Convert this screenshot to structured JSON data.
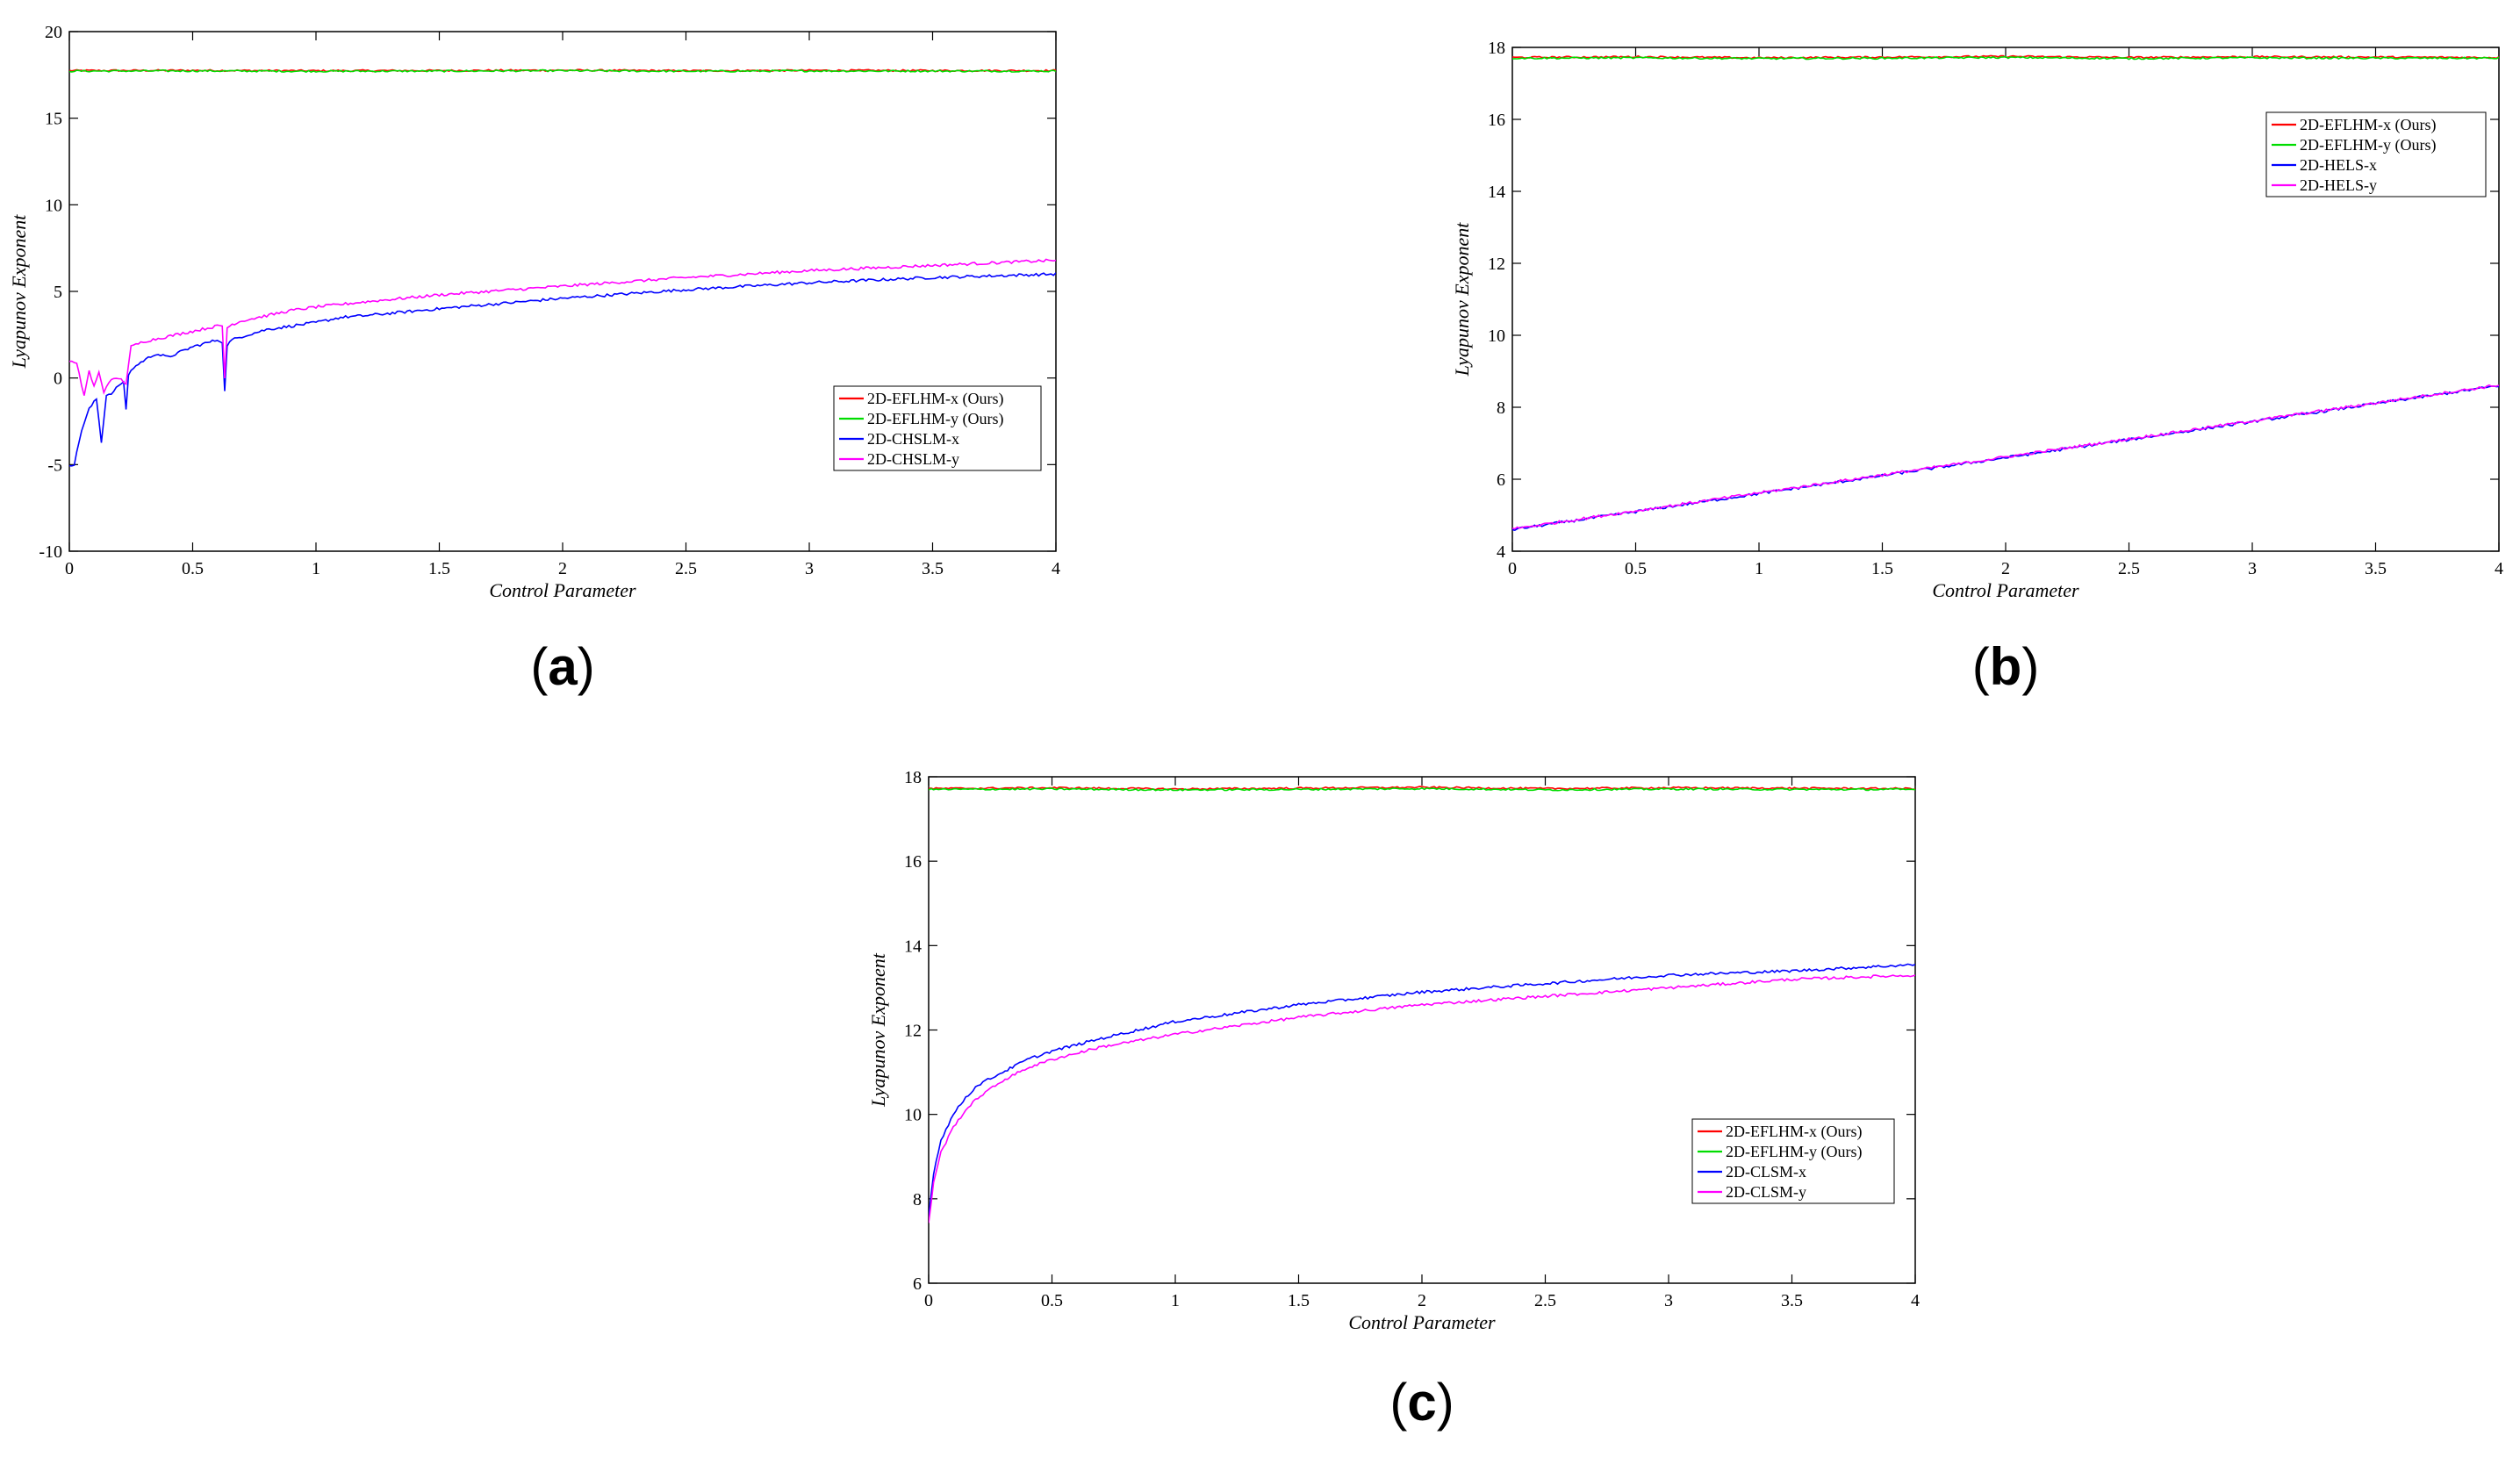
{
  "colors": {
    "ours_x": "#ff0000",
    "ours_y": "#00dd00",
    "comp_x": "#0000ff",
    "comp_y": "#ff00ff"
  },
  "chart_data": [
    {
      "panel": "(a)",
      "panel_letter": "a",
      "type": "line",
      "xlabel": "Control Parameter",
      "ylabel": "Lyapunov Exponent",
      "xlim": [
        0,
        4
      ],
      "ylim": [
        -10,
        20
      ],
      "xticks": [
        0,
        0.5,
        1,
        1.5,
        2,
        2.5,
        3,
        3.5,
        4
      ],
      "xtick_labels": [
        "0",
        "0.5",
        "1",
        "1.5",
        "2",
        "2.5",
        "3",
        "3.5",
        "4"
      ],
      "yticks": [
        -10,
        -5,
        0,
        5,
        10,
        15,
        20
      ],
      "ytick_labels": [
        "-10",
        "-5",
        "0",
        "5",
        "10",
        "15",
        "20"
      ],
      "legend_position": "lower-right",
      "series": [
        {
          "name": "2D-EFLHM-x (Ours)",
          "color_key": "ours_x",
          "x": [
            0,
            0.5,
            1,
            1.5,
            2,
            2.5,
            3,
            3.5,
            4
          ],
          "y": [
            17.75,
            17.76,
            17.74,
            17.75,
            17.77,
            17.74,
            17.76,
            17.75,
            17.75
          ]
        },
        {
          "name": "2D-EFLHM-y (Ours)",
          "color_key": "ours_y",
          "x": [
            0,
            0.5,
            1,
            1.5,
            2,
            2.5,
            3,
            3.5,
            4
          ],
          "y": [
            17.72,
            17.73,
            17.71,
            17.72,
            17.74,
            17.71,
            17.73,
            17.72,
            17.72
          ]
        },
        {
          "name": "2D-CHSLM-x",
          "color_key": "comp_x",
          "x": [
            0.02,
            0.05,
            0.08,
            0.11,
            0.13,
            0.15,
            0.18,
            0.2,
            0.22,
            0.23,
            0.24,
            0.26,
            0.3,
            0.35,
            0.4,
            0.5,
            0.6,
            0.62,
            0.63,
            0.64,
            0.66,
            0.7,
            0.8,
            0.9,
            1.0,
            1.1,
            1.2,
            1.5,
            2.0,
            2.5,
            3.0,
            3.5,
            4.0
          ],
          "y": [
            -5.0,
            -3.0,
            -1.8,
            -1.2,
            -3.7,
            -1.0,
            -0.8,
            -0.4,
            -0.3,
            -1.8,
            0.2,
            0.6,
            1.0,
            1.4,
            1.2,
            1.8,
            2.2,
            2.1,
            -0.8,
            1.9,
            2.2,
            2.4,
            2.8,
            3.0,
            3.2,
            3.5,
            3.6,
            4.0,
            4.6,
            5.1,
            5.5,
            5.8,
            6.0
          ]
        },
        {
          "name": "2D-CHSLM-y",
          "color_key": "comp_y",
          "x": [
            0.0,
            0.03,
            0.06,
            0.08,
            0.1,
            0.12,
            0.14,
            0.16,
            0.2,
            0.23,
            0.25,
            0.3,
            0.4,
            0.5,
            0.6,
            0.62,
            0.63,
            0.64,
            0.66,
            0.7,
            0.8,
            0.9,
            1.0,
            1.2,
            1.5,
            2.0,
            2.5,
            3.0,
            3.5,
            4.0
          ],
          "y": [
            1.0,
            0.8,
            -1.0,
            0.4,
            -0.5,
            0.3,
            -0.8,
            -0.2,
            0.0,
            -0.3,
            1.8,
            2.1,
            2.4,
            2.7,
            3.0,
            3.0,
            0.0,
            2.9,
            3.1,
            3.3,
            3.6,
            3.9,
            4.1,
            4.4,
            4.8,
            5.3,
            5.8,
            6.2,
            6.5,
            6.8
          ]
        }
      ]
    },
    {
      "panel": "(b)",
      "panel_letter": "b",
      "type": "line",
      "xlabel": "Control Parameter",
      "ylabel": "Lyapunov Exponent",
      "xlim": [
        0,
        4
      ],
      "ylim": [
        4,
        18
      ],
      "xticks": [
        0,
        0.5,
        1,
        1.5,
        2,
        2.5,
        3,
        3.5,
        4
      ],
      "xtick_labels": [
        "0",
        "0.5",
        "1",
        "1.5",
        "2",
        "2.5",
        "3",
        "3.5",
        "4"
      ],
      "yticks": [
        4,
        6,
        8,
        10,
        12,
        14,
        16,
        18
      ],
      "ytick_labels": [
        "4",
        "6",
        "8",
        "10",
        "12",
        "14",
        "16",
        "18"
      ],
      "legend_position": "upper-right",
      "series": [
        {
          "name": "2D-EFLHM-x (Ours)",
          "color_key": "ours_x",
          "x": [
            0,
            0.5,
            1,
            1.5,
            2,
            2.5,
            3,
            3.5,
            4
          ],
          "y": [
            17.72,
            17.74,
            17.71,
            17.73,
            17.75,
            17.72,
            17.74,
            17.73,
            17.72
          ]
        },
        {
          "name": "2D-EFLHM-y (Ours)",
          "color_key": "ours_y",
          "x": [
            0,
            0.5,
            1,
            1.5,
            2,
            2.5,
            3,
            3.5,
            4
          ],
          "y": [
            17.7,
            17.71,
            17.69,
            17.7,
            17.72,
            17.69,
            17.71,
            17.7,
            17.7
          ]
        },
        {
          "name": "2D-HELS-x",
          "color_key": "comp_x",
          "x": [
            0,
            0.5,
            1,
            1.5,
            2,
            2.5,
            3,
            3.5,
            4
          ],
          "y": [
            4.6,
            5.1,
            5.6,
            6.1,
            6.6,
            7.1,
            7.6,
            8.1,
            8.6
          ]
        },
        {
          "name": "2D-HELS-y",
          "color_key": "comp_y",
          "x": [
            0,
            0.5,
            1,
            1.5,
            2,
            2.5,
            3,
            3.5,
            4
          ],
          "y": [
            4.62,
            5.12,
            5.62,
            6.12,
            6.62,
            7.12,
            7.62,
            8.12,
            8.62
          ]
        }
      ]
    },
    {
      "panel": "(c)",
      "panel_letter": "c",
      "type": "line",
      "xlabel": "Control Parameter",
      "ylabel": "Lyapunov Exponent",
      "xlim": [
        0,
        4
      ],
      "ylim": [
        6,
        18
      ],
      "xticks": [
        0,
        0.5,
        1,
        1.5,
        2,
        2.5,
        3,
        3.5,
        4
      ],
      "xtick_labels": [
        "0",
        "0.5",
        "1",
        "1.5",
        "2",
        "2.5",
        "3",
        "3.5",
        "4"
      ],
      "yticks": [
        6,
        8,
        10,
        12,
        14,
        16,
        18
      ],
      "ytick_labels": [
        "6",
        "8",
        "10",
        "12",
        "14",
        "16",
        "18"
      ],
      "legend_position": "lower-right",
      "series": [
        {
          "name": "2D-EFLHM-x (Ours)",
          "color_key": "ours_x",
          "x": [
            0,
            0.5,
            1,
            1.5,
            2,
            2.5,
            3,
            3.5,
            4
          ],
          "y": [
            17.72,
            17.74,
            17.71,
            17.73,
            17.75,
            17.72,
            17.74,
            17.73,
            17.72
          ]
        },
        {
          "name": "2D-EFLHM-y (Ours)",
          "color_key": "ours_y",
          "x": [
            0,
            0.5,
            1,
            1.5,
            2,
            2.5,
            3,
            3.5,
            4
          ],
          "y": [
            17.7,
            17.71,
            17.69,
            17.7,
            17.72,
            17.69,
            17.71,
            17.7,
            17.7
          ]
        },
        {
          "name": "2D-CLSM-x",
          "color_key": "comp_x",
          "x": [
            0.0,
            0.02,
            0.05,
            0.1,
            0.15,
            0.2,
            0.3,
            0.4,
            0.5,
            0.7,
            1.0,
            1.5,
            2.0,
            2.5,
            3.0,
            3.5,
            4.0
          ],
          "y": [
            7.6,
            8.6,
            9.4,
            10.0,
            10.4,
            10.7,
            11.0,
            11.3,
            11.5,
            11.8,
            12.2,
            12.6,
            12.9,
            13.1,
            13.3,
            13.4,
            13.55
          ]
        },
        {
          "name": "2D-CLSM-y",
          "color_key": "comp_y",
          "x": [
            0.0,
            0.02,
            0.05,
            0.1,
            0.15,
            0.2,
            0.3,
            0.4,
            0.5,
            0.7,
            1.0,
            1.5,
            2.0,
            2.5,
            3.0,
            3.5,
            4.0
          ],
          "y": [
            7.4,
            8.4,
            9.1,
            9.7,
            10.1,
            10.4,
            10.8,
            11.1,
            11.3,
            11.6,
            11.9,
            12.3,
            12.6,
            12.8,
            13.0,
            13.2,
            13.3
          ]
        }
      ]
    }
  ]
}
